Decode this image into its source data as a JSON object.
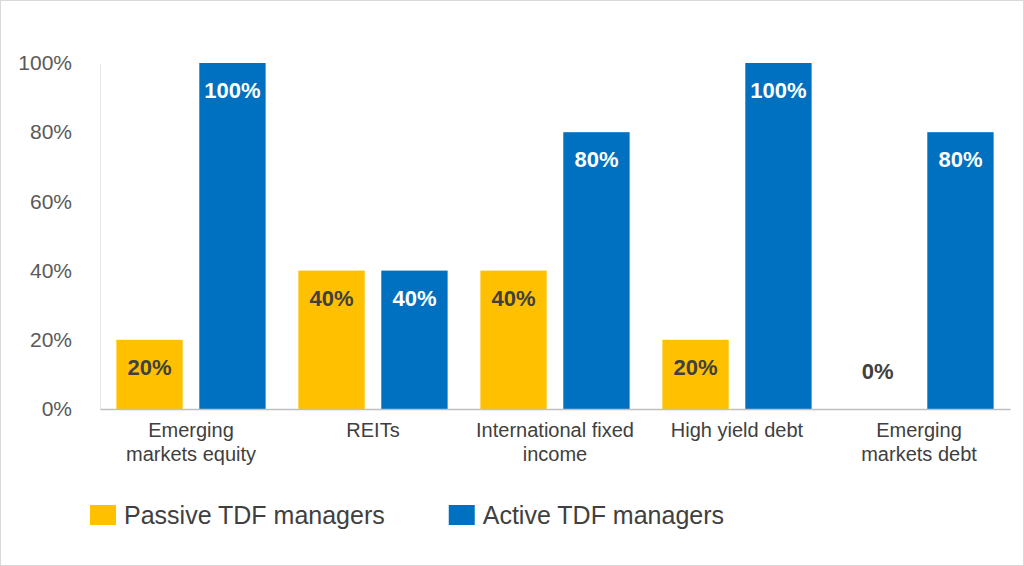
{
  "chart_data": {
    "type": "bar",
    "categories": [
      "Emerging markets equity",
      "REITs",
      "International fixed income",
      "High yield debt",
      "Emerging markets debt"
    ],
    "series": [
      {
        "name": "Passive TDF managers",
        "color": "#ffc000",
        "values": [
          20,
          40,
          40,
          20,
          0
        ],
        "value_labels": [
          "20%",
          "40%",
          "40%",
          "20%",
          "0%"
        ]
      },
      {
        "name": "Active TDF managers",
        "color": "#0070c0",
        "values": [
          100,
          40,
          80,
          100,
          80
        ],
        "value_labels": [
          "100%",
          "40%",
          "80%",
          "100%",
          "80%"
        ]
      }
    ],
    "ylim": [
      0,
      100
    ],
    "yticks": [
      {
        "value": 0,
        "label": "0%"
      },
      {
        "value": 20,
        "label": "20%"
      },
      {
        "value": 40,
        "label": "40%"
      },
      {
        "value": 60,
        "label": "60%"
      },
      {
        "value": 80,
        "label": "80%"
      },
      {
        "value": 100,
        "label": "100%"
      }
    ],
    "grid": false,
    "data_labels": true,
    "legend": "bottom"
  }
}
